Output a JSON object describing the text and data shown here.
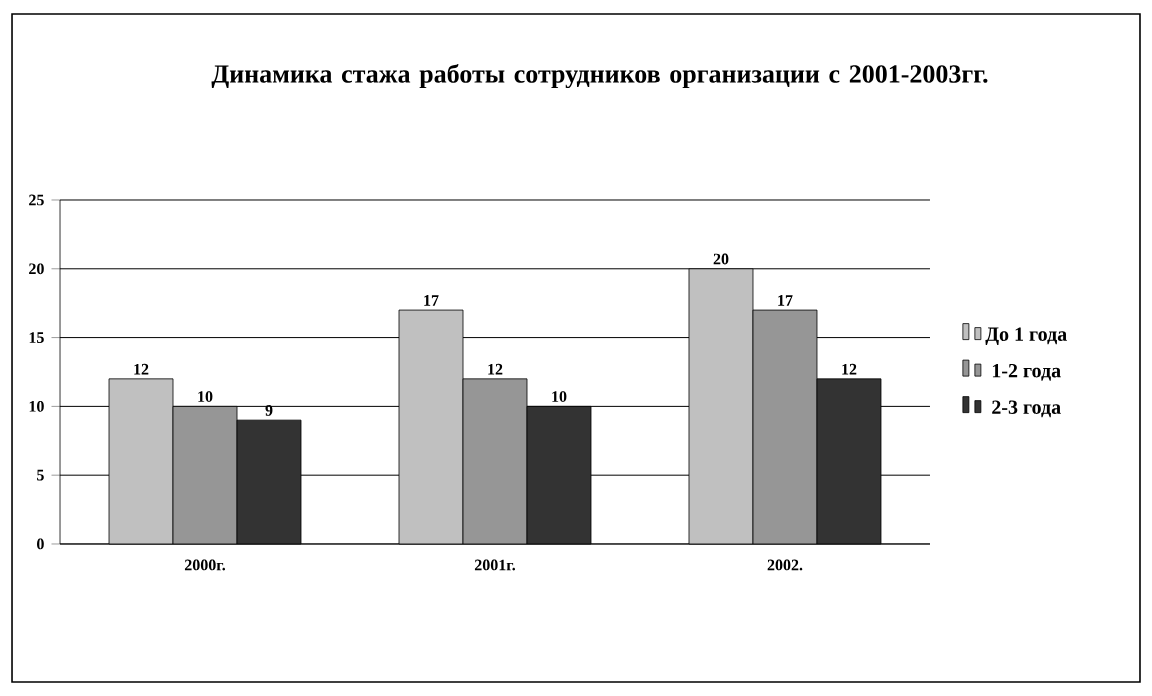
{
  "chart_data": {
    "type": "bar",
    "title": "Динамика стажа работы сотрудников организации с 2001-2003гг.",
    "categories": [
      "2000г.",
      "2001г.",
      "2002."
    ],
    "series": [
      {
        "name": "До 1 года",
        "color": "#c0c0c0",
        "values": [
          12,
          17,
          20
        ]
      },
      {
        "name": "1-2 года",
        "color": "#969696",
        "values": [
          10,
          12,
          17
        ]
      },
      {
        "name": "2-3 года",
        "color": "#333333",
        "values": [
          9,
          10,
          12
        ]
      }
    ],
    "ylim": [
      0,
      25
    ],
    "yticks": [
      0,
      5,
      10,
      15,
      20,
      25
    ],
    "grid": "y",
    "legend": "right",
    "data_labels": true
  }
}
